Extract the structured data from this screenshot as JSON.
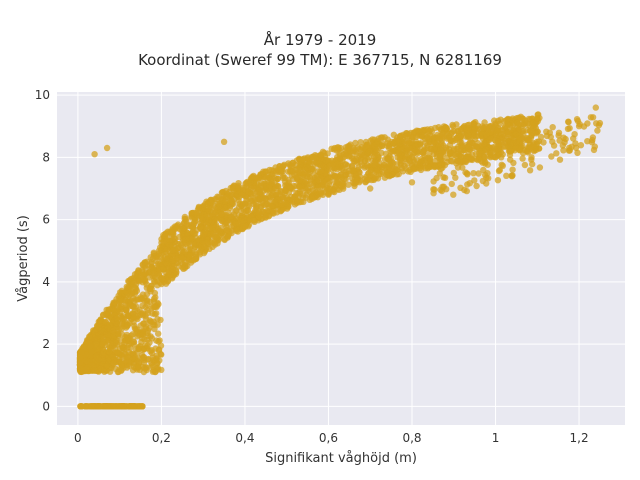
{
  "chart_data": {
    "type": "scatter",
    "title": [
      "År 1979 - 2019",
      "Koordinat (Sweref 99 TM): E 367715, N 6281169"
    ],
    "xlabel": "Signifikant våghöjd (m)",
    "ylabel": "Vågperiod (s)",
    "xlim": [
      -0.05,
      1.31
    ],
    "ylim": [
      -0.6,
      10.1
    ],
    "xticks": [
      0,
      0.2,
      0.4,
      0.6,
      0.8,
      1,
      1.2
    ],
    "xtick_labels": [
      "0",
      "0,2",
      "0,4",
      "0,6",
      "0,8",
      "1",
      "1,2"
    ],
    "yticks": [
      0,
      2,
      4,
      6,
      8,
      10
    ],
    "ytick_labels": [
      "0",
      "2",
      "4",
      "6",
      "8",
      "10"
    ],
    "grid": true,
    "legend": "none",
    "plot_background": "#e9e9f1",
    "marker_color": "#d4a11e",
    "series": [
      {
        "points_sample": [
          [
            0.01,
            0
          ],
          [
            0.05,
            0
          ],
          [
            0.1,
            0
          ],
          [
            0.15,
            0
          ],
          [
            0.02,
            1.2
          ],
          [
            0.05,
            1.5
          ],
          [
            0.1,
            2.5
          ],
          [
            0.15,
            3.5
          ],
          [
            0.2,
            4.5
          ],
          [
            0.3,
            5.5
          ],
          [
            0.4,
            6
          ],
          [
            0.5,
            6.5
          ],
          [
            0.6,
            6.8
          ],
          [
            0.7,
            7
          ],
          [
            0.8,
            7.2
          ],
          [
            0.9,
            7.5
          ],
          [
            1,
            8
          ],
          [
            1.1,
            8.5
          ],
          [
            1.2,
            9
          ],
          [
            1.24,
            9.6
          ],
          [
            1.25,
            9.1
          ],
          [
            0.04,
            8.1
          ],
          [
            0.07,
            8.3
          ],
          [
            0.35,
            8.5
          ],
          [
            0.85,
            8.6
          ],
          [
            0.95,
            8.9
          ]
        ]
      }
    ]
  }
}
